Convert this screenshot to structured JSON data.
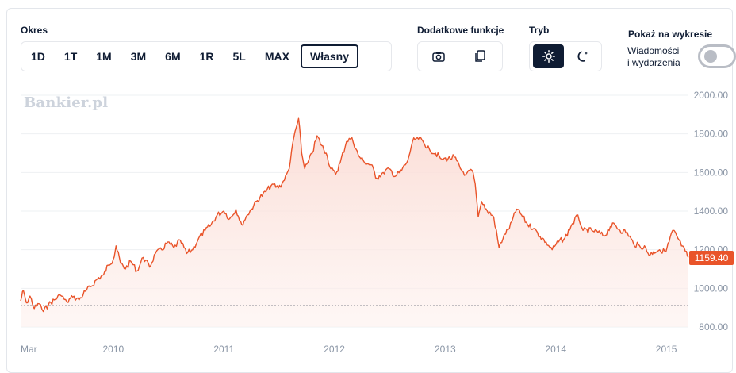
{
  "period": {
    "label": "Okres",
    "buttons": [
      "1D",
      "1T",
      "1M",
      "3M",
      "6M",
      "1R",
      "5L",
      "MAX",
      "Własny"
    ],
    "active": "Własny"
  },
  "extras": {
    "label": "Dodatkowe funkcje",
    "camera_icon": "camera-icon",
    "copy_icon": "copy-icon"
  },
  "mode": {
    "label": "Tryb",
    "light_icon": "sun-icon",
    "dark_icon": "moon-icon",
    "active": "light"
  },
  "overlay": {
    "label": "Pokaż na wykresie",
    "toggle_line1": "Wiadomości",
    "toggle_line2": "i wydarzenia",
    "toggle_on": false
  },
  "watermark": "Bankier.pl",
  "price_tag": "1159.40",
  "colors": {
    "line": "#e9542a",
    "fill": "#fdecea",
    "baseline": "#0f1c33",
    "grid": "#eef0f3",
    "tick": "#8a95a5"
  },
  "chart_data": {
    "type": "area",
    "title": "",
    "xlabel": "",
    "ylabel": "",
    "ylim": [
      800,
      2000
    ],
    "y_ticks": [
      "800.00",
      "1000.00",
      "1200.00",
      "1400.00",
      "1600.00",
      "1800.00",
      "2000.00"
    ],
    "x_ticks": [
      {
        "label": "Mar",
        "x": "2009-03-01"
      },
      {
        "label": "2010",
        "x": "2010-01-01"
      },
      {
        "label": "2011",
        "x": "2011-01-01"
      },
      {
        "label": "2012",
        "x": "2012-01-01"
      },
      {
        "label": "2013",
        "x": "2013-01-01"
      },
      {
        "label": "2014",
        "x": "2014-01-01"
      },
      {
        "label": "2015",
        "x": "2015-01-01"
      }
    ],
    "x_range": [
      "2009-03-01",
      "2015-03-15"
    ],
    "baseline": 910,
    "series": [
      {
        "points": [
          [
            "2009-03-01",
            935
          ],
          [
            "2009-03-10",
            990
          ],
          [
            "2009-03-20",
            925
          ],
          [
            "2009-04-01",
            960
          ],
          [
            "2009-04-15",
            895
          ],
          [
            "2009-05-01",
            920
          ],
          [
            "2009-05-15",
            880
          ],
          [
            "2009-06-01",
            915
          ],
          [
            "2009-06-20",
            940
          ],
          [
            "2009-07-10",
            965
          ],
          [
            "2009-08-01",
            930
          ],
          [
            "2009-08-20",
            955
          ],
          [
            "2009-09-10",
            940
          ],
          [
            "2009-10-01",
            985
          ],
          [
            "2009-10-20",
            1010
          ],
          [
            "2009-11-10",
            1050
          ],
          [
            "2009-11-30",
            1070
          ],
          [
            "2009-12-15",
            1120
          ],
          [
            "2010-01-01",
            1150
          ],
          [
            "2010-01-10",
            1220
          ],
          [
            "2010-01-25",
            1130
          ],
          [
            "2010-02-10",
            1100
          ],
          [
            "2010-02-28",
            1140
          ],
          [
            "2010-03-20",
            1090
          ],
          [
            "2010-04-10",
            1160
          ],
          [
            "2010-05-01",
            1110
          ],
          [
            "2010-05-20",
            1180
          ],
          [
            "2010-06-10",
            1200
          ],
          [
            "2010-06-30",
            1240
          ],
          [
            "2010-07-20",
            1210
          ],
          [
            "2010-08-10",
            1250
          ],
          [
            "2010-08-31",
            1180
          ],
          [
            "2010-09-20",
            1200
          ],
          [
            "2010-10-10",
            1260
          ],
          [
            "2010-10-31",
            1300
          ],
          [
            "2010-11-20",
            1330
          ],
          [
            "2010-12-10",
            1380
          ],
          [
            "2011-01-01",
            1400
          ],
          [
            "2011-01-20",
            1360
          ],
          [
            "2011-02-10",
            1410
          ],
          [
            "2011-03-01",
            1330
          ],
          [
            "2011-03-20",
            1380
          ],
          [
            "2011-04-10",
            1430
          ],
          [
            "2011-04-30",
            1470
          ],
          [
            "2011-05-20",
            1500
          ],
          [
            "2011-06-10",
            1540
          ],
          [
            "2011-06-30",
            1520
          ],
          [
            "2011-07-20",
            1560
          ],
          [
            "2011-08-05",
            1620
          ],
          [
            "2011-08-20",
            1780
          ],
          [
            "2011-09-05",
            1880
          ],
          [
            "2011-09-15",
            1700
          ],
          [
            "2011-09-25",
            1620
          ],
          [
            "2011-10-05",
            1650
          ],
          [
            "2011-10-20",
            1700
          ],
          [
            "2011-11-05",
            1790
          ],
          [
            "2011-11-20",
            1740
          ],
          [
            "2011-12-05",
            1700
          ],
          [
            "2011-12-20",
            1620
          ],
          [
            "2012-01-05",
            1590
          ],
          [
            "2012-01-20",
            1650
          ],
          [
            "2012-02-10",
            1760
          ],
          [
            "2012-02-28",
            1780
          ],
          [
            "2012-03-20",
            1690
          ],
          [
            "2012-04-10",
            1650
          ],
          [
            "2012-05-01",
            1640
          ],
          [
            "2012-05-20",
            1570
          ],
          [
            "2012-06-10",
            1600
          ],
          [
            "2012-06-30",
            1620
          ],
          [
            "2012-07-20",
            1580
          ],
          [
            "2012-08-10",
            1610
          ],
          [
            "2012-08-30",
            1660
          ],
          [
            "2012-09-15",
            1760
          ],
          [
            "2012-10-01",
            1780
          ],
          [
            "2012-10-20",
            1760
          ],
          [
            "2012-11-10",
            1720
          ],
          [
            "2012-11-30",
            1700
          ],
          [
            "2012-12-20",
            1670
          ],
          [
            "2013-01-10",
            1670
          ],
          [
            "2013-01-31",
            1680
          ],
          [
            "2013-02-20",
            1620
          ],
          [
            "2013-03-10",
            1590
          ],
          [
            "2013-03-31",
            1610
          ],
          [
            "2013-04-10",
            1540
          ],
          [
            "2013-04-20",
            1370
          ],
          [
            "2013-05-01",
            1450
          ],
          [
            "2013-05-20",
            1400
          ],
          [
            "2013-06-10",
            1370
          ],
          [
            "2013-06-28",
            1210
          ],
          [
            "2013-07-15",
            1280
          ],
          [
            "2013-08-01",
            1310
          ],
          [
            "2013-08-25",
            1410
          ],
          [
            "2013-09-10",
            1380
          ],
          [
            "2013-09-30",
            1330
          ],
          [
            "2013-10-20",
            1310
          ],
          [
            "2013-11-10",
            1270
          ],
          [
            "2013-11-30",
            1240
          ],
          [
            "2013-12-20",
            1200
          ],
          [
            "2014-01-10",
            1240
          ],
          [
            "2014-01-31",
            1260
          ],
          [
            "2014-02-20",
            1320
          ],
          [
            "2014-03-15",
            1380
          ],
          [
            "2014-04-01",
            1300
          ],
          [
            "2014-04-30",
            1300
          ],
          [
            "2014-05-20",
            1290
          ],
          [
            "2014-06-10",
            1270
          ],
          [
            "2014-06-30",
            1320
          ],
          [
            "2014-07-15",
            1330
          ],
          [
            "2014-08-01",
            1300
          ],
          [
            "2014-08-25",
            1290
          ],
          [
            "2014-09-15",
            1230
          ],
          [
            "2014-10-05",
            1220
          ],
          [
            "2014-10-25",
            1210
          ],
          [
            "2014-11-05",
            1170
          ],
          [
            "2014-11-20",
            1190
          ],
          [
            "2014-12-10",
            1200
          ],
          [
            "2014-12-31",
            1190
          ],
          [
            "2015-01-10",
            1240
          ],
          [
            "2015-01-22",
            1300
          ],
          [
            "2015-02-05",
            1270
          ],
          [
            "2015-02-20",
            1220
          ],
          [
            "2015-03-05",
            1190
          ],
          [
            "2015-03-15",
            1160
          ]
        ]
      }
    ]
  }
}
